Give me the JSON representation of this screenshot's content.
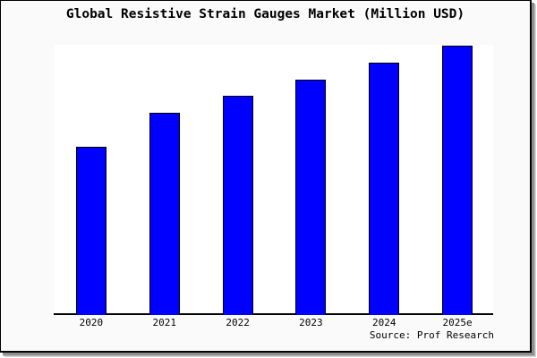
{
  "chart_data": {
    "type": "bar",
    "title": "Global Resistive Strain Gauges Market (Million USD)",
    "categories": [
      "2020",
      "2021",
      "2022",
      "2023",
      "2024",
      "2025e"
    ],
    "values": [
      100,
      120,
      130,
      140,
      150,
      160
    ],
    "values_estimation": "relative bar heights; y-axis has no visible scale, gridlines or tick labels",
    "xlabel": "",
    "ylabel": "",
    "ylim": [
      0,
      160
    ],
    "grid": false,
    "legend": false,
    "source": "Source: Prof Research",
    "colors": {
      "bar_fill": "#0000ff",
      "bar_border": "#000000",
      "plot_background": "#ffffff",
      "outer_background": "#fafafa",
      "frame_border": "#000000",
      "shadow": "#8f8f8f",
      "text": "#000000"
    }
  }
}
